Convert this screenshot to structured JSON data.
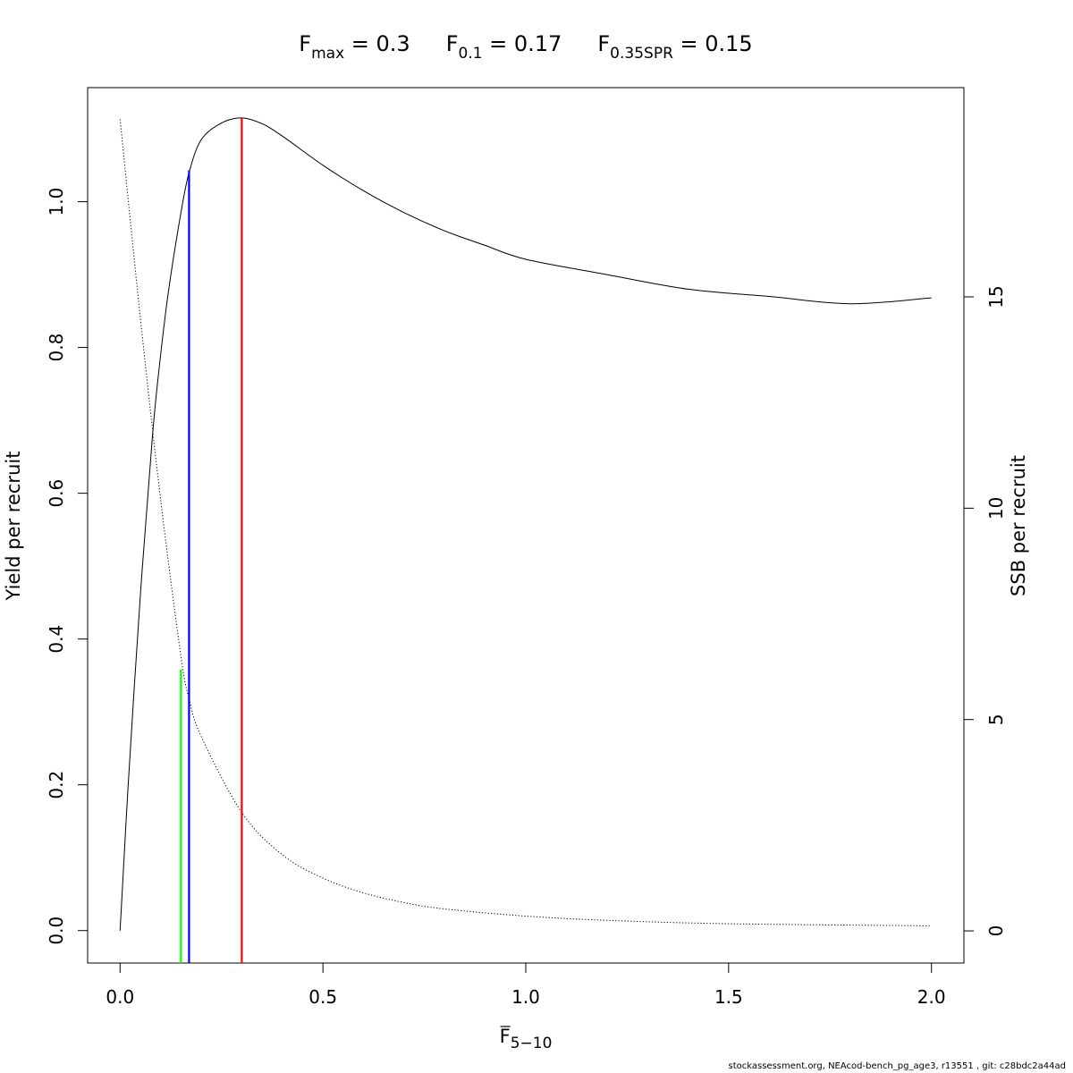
{
  "chart_data": {
    "type": "line",
    "title_parts": [
      {
        "main": "F",
        "sub": "max",
        "rest": " = 0.3"
      },
      {
        "main": "F",
        "sub": "0.1",
        "rest": " = 0.17"
      },
      {
        "main": "F",
        "sub": "0.35SPR",
        "rest": " = 0.15"
      }
    ],
    "xlabel": {
      "main": "F",
      "sub": "5−10"
    },
    "ylabel": "Yield per recruit",
    "y2label": "SSB per recruit",
    "xlim": [
      -0.08,
      2.08
    ],
    "ylim": [
      -0.0445,
      1.1565
    ],
    "y2lim": [
      -0.76,
      19.95
    ],
    "x_ticks": [
      0.0,
      0.5,
      1.0,
      1.5,
      2.0
    ],
    "x_tick_labels": [
      "0.0",
      "0.5",
      "1.0",
      "1.5",
      "2.0"
    ],
    "y_ticks": [
      0.0,
      0.2,
      0.4,
      0.6,
      0.8,
      1.0
    ],
    "y_tick_labels": [
      "0.0",
      "0.2",
      "0.4",
      "0.6",
      "0.8",
      "1.0"
    ],
    "y2_ticks": [
      0,
      5,
      10,
      15
    ],
    "y2_tick_labels": [
      "0",
      "5",
      "10",
      "15"
    ],
    "grid": false,
    "series": [
      {
        "line_style": "solid",
        "axis": "left",
        "color": "#000000",
        "x": [
          0,
          0.02,
          0.05,
          0.08,
          0.1,
          0.12,
          0.15,
          0.17,
          0.2,
          0.25,
          0.3,
          0.35,
          0.4,
          0.5,
          0.6,
          0.7,
          0.8,
          0.9,
          1.0,
          1.2,
          1.4,
          1.6,
          1.8,
          2.0
        ],
        "y": [
          0,
          0.2,
          0.46,
          0.68,
          0.79,
          0.88,
          0.985,
          1.04,
          1.085,
          1.108,
          1.115,
          1.107,
          1.09,
          1.05,
          1.015,
          0.985,
          0.96,
          0.94,
          0.921,
          0.9,
          0.88,
          0.87,
          0.86,
          0.868
        ]
      },
      {
        "line_style": "dotted",
        "axis": "right",
        "color": "#000000",
        "x": [
          0,
          0.05,
          0.1,
          0.15,
          0.17,
          0.2,
          0.3,
          0.4,
          0.5,
          0.6,
          0.7,
          0.8,
          1.0,
          1.2,
          1.5,
          2.0
        ],
        "y": [
          19.2,
          14.5,
          10.2,
          6.5,
          5.5,
          4.6,
          2.8,
          1.8,
          1.25,
          0.9,
          0.67,
          0.52,
          0.35,
          0.25,
          0.17,
          0.12
        ]
      }
    ],
    "reference_lines": [
      {
        "x": 0.15,
        "y_top": 0.358,
        "color": "#00ff00"
      },
      {
        "x": 0.17,
        "y_top": 1.043,
        "color": "#0000ff"
      },
      {
        "x": 0.3,
        "y_top": 1.115,
        "color": "#ff0000"
      }
    ]
  },
  "footer": "stockassessment.org, NEAcod-bench_pg_age3, r13551 , git: c28bdc2a44ad"
}
